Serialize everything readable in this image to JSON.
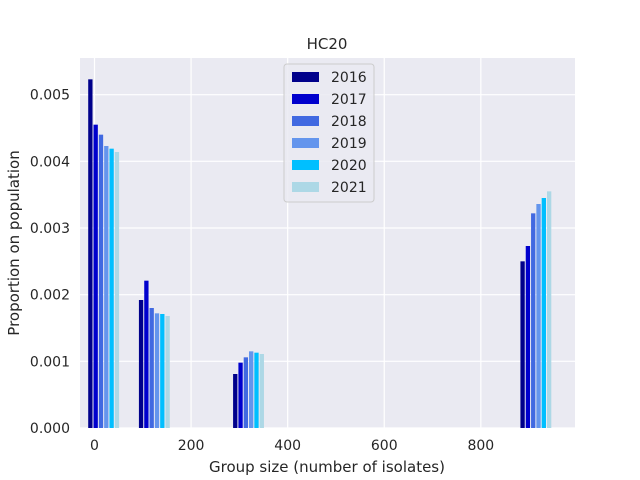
{
  "chart_data": {
    "type": "bar",
    "title": "HC20",
    "xlabel": "Group size (number of isolates)",
    "ylabel": "Proportion on population",
    "xlim": [
      -30,
      995
    ],
    "ylim": [
      0,
      0.00555
    ],
    "xticks": [
      0,
      200,
      400,
      600,
      800
    ],
    "yticks": [
      0.0,
      0.001,
      0.002,
      0.003,
      0.004,
      0.005
    ],
    "ytick_labels": [
      "0.000",
      "0.001",
      "0.002",
      "0.003",
      "0.004",
      "0.005"
    ],
    "grid": true,
    "legend_position": "top-center",
    "bar_width": 11,
    "groups": [
      20,
      125,
      320,
      915
    ],
    "series": [
      {
        "name": "2016",
        "color": "#00008b",
        "values": [
          0.00523,
          0.00192,
          0.00081,
          0.0025
        ]
      },
      {
        "name": "2017",
        "color": "#0000cd",
        "values": [
          0.00455,
          0.00221,
          0.00098,
          0.00273
        ]
      },
      {
        "name": "2018",
        "color": "#4169e1",
        "values": [
          0.0044,
          0.0018,
          0.00106,
          0.00322
        ]
      },
      {
        "name": "2019",
        "color": "#6495ed",
        "values": [
          0.00423,
          0.00172,
          0.00115,
          0.00336
        ]
      },
      {
        "name": "2020",
        "color": "#00bfff",
        "values": [
          0.00419,
          0.00171,
          0.00113,
          0.00345
        ]
      },
      {
        "name": "2021",
        "color": "#add8e6",
        "values": [
          0.00414,
          0.00168,
          0.00111,
          0.00355
        ]
      }
    ]
  }
}
